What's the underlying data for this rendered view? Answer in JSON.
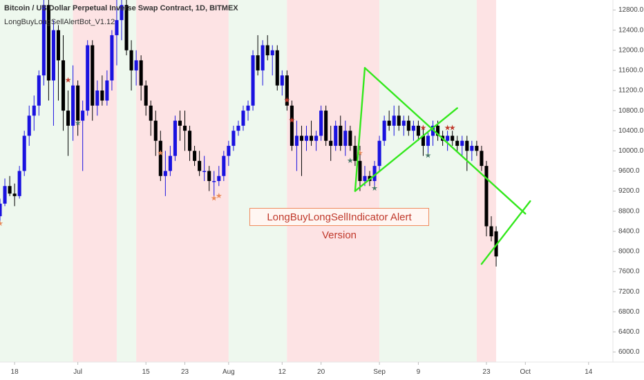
{
  "header": {
    "symbol_line": "Bitcoin / US Dollar Perpetual Inverse Swap Contract, 1D, BITMEX",
    "indicator_line": "LongBuyLongSellAlertBot_V1.12"
  },
  "annotation": "LongBuyLongSellIndicator Alert Version",
  "colors": {
    "bull": "#1a12e0",
    "bear": "#000000",
    "trendline": "#33e81c",
    "bg_green": "#eef8ee",
    "bg_red": "#fde3e4",
    "axis_text": "#444444",
    "star_red": "#c0392b",
    "star_orange": "#e88a5a",
    "star_green": "#4a7a6a"
  },
  "chart_data": {
    "type": "candlestick",
    "y_axis": {
      "ticks": [
        6000,
        6400,
        6800,
        7200,
        7600,
        8000,
        8400,
        8800,
        9200,
        9600,
        10000,
        10400,
        10800,
        11200,
        11600,
        12000,
        12400,
        12800
      ],
      "tick_labels": [
        "6000.0",
        "6400.0",
        "6800.0",
        "7200.0",
        "7600.0",
        "8000.0",
        "8400.0",
        "8800.0",
        "9200.0",
        "9600.0",
        "10000.0",
        "10400.0",
        "10800.0",
        "11200.0",
        "11600.0",
        "12000.0",
        "12400.0",
        "12800.0"
      ],
      "range": [
        5800,
        13000
      ]
    },
    "x_axis": {
      "labels": [
        "18",
        "Jul",
        "15",
        "23",
        "Aug",
        "12",
        "20",
        "Sep",
        "9",
        "23",
        "Oct",
        "14"
      ],
      "label_days": [
        -13,
        0,
        14,
        22,
        31,
        42,
        50,
        62,
        70,
        84,
        92,
        105
      ],
      "range_days": [
        -16,
        110
      ]
    },
    "background_zones": [
      {
        "start": -16,
        "end": -1,
        "kind": "green"
      },
      {
        "start": -1,
        "end": 8,
        "kind": "red"
      },
      {
        "start": 8,
        "end": 12,
        "kind": "green"
      },
      {
        "start": 12,
        "end": 31,
        "kind": "red"
      },
      {
        "start": 31,
        "end": 43,
        "kind": "green"
      },
      {
        "start": 43,
        "end": 62,
        "kind": "red"
      },
      {
        "start": 62,
        "end": 82,
        "kind": "green"
      },
      {
        "start": 82,
        "end": 86,
        "kind": "red"
      }
    ],
    "candles": [
      [
        -16,
        8700,
        9050,
        8600,
        8950
      ],
      [
        -15,
        8950,
        9450,
        8900,
        9300
      ],
      [
        -14,
        9300,
        9500,
        9100,
        9150
      ],
      [
        -13,
        9150,
        9350,
        8900,
        9100
      ],
      [
        -12,
        9100,
        9700,
        9050,
        9600
      ],
      [
        -11,
        9600,
        10400,
        9500,
        10300
      ],
      [
        -10,
        10300,
        10900,
        10100,
        10700
      ],
      [
        -9,
        10700,
        11100,
        10400,
        10900
      ],
      [
        -8,
        10900,
        11600,
        10700,
        11500
      ],
      [
        -7,
        11500,
        13100,
        11300,
        12900
      ],
      [
        -6,
        12900,
        13200,
        11000,
        11400
      ],
      [
        -5,
        11400,
        12600,
        10500,
        12400
      ],
      [
        -4,
        12400,
        12500,
        11000,
        11800
      ],
      [
        -3,
        11800,
        12300,
        10400,
        10800
      ],
      [
        -2,
        10800,
        11200,
        9900,
        10500
      ],
      [
        -1,
        10500,
        11700,
        10200,
        11300
      ],
      [
        0,
        11300,
        11400,
        10300,
        10600
      ],
      [
        1,
        10600,
        11000,
        9600,
        10800
      ],
      [
        2,
        10800,
        12200,
        10700,
        12100
      ],
      [
        3,
        12100,
        12200,
        10600,
        10900
      ],
      [
        4,
        10900,
        11400,
        10700,
        11200
      ],
      [
        5,
        11200,
        11500,
        10900,
        11000
      ],
      [
        6,
        11000,
        11600,
        10900,
        11400
      ],
      [
        7,
        11400,
        12400,
        11200,
        12300
      ],
      [
        8,
        12300,
        13200,
        11700,
        12600
      ],
      [
        9,
        12600,
        13200,
        12200,
        12900
      ],
      [
        10,
        12900,
        13000,
        11900,
        12000
      ],
      [
        11,
        12000,
        12200,
        11200,
        11600
      ],
      [
        12,
        11600,
        12000,
        11300,
        11800
      ],
      [
        13,
        11800,
        11900,
        11000,
        11300
      ],
      [
        14,
        11300,
        11400,
        10700,
        10900
      ],
      [
        15,
        10900,
        11000,
        10300,
        10600
      ],
      [
        16,
        10600,
        10800,
        9900,
        10200
      ],
      [
        17,
        10200,
        10400,
        9400,
        9500
      ],
      [
        18,
        9500,
        10000,
        9100,
        9600
      ],
      [
        19,
        9600,
        10100,
        9500,
        9900
      ],
      [
        20,
        9900,
        10700,
        9800,
        10600
      ],
      [
        21,
        10600,
        10800,
        10200,
        10500
      ],
      [
        22,
        10500,
        10800,
        10000,
        10400
      ],
      [
        23,
        10400,
        10500,
        9800,
        10000
      ],
      [
        24,
        10000,
        10100,
        9700,
        9800
      ],
      [
        25,
        9800,
        10000,
        9500,
        9600
      ],
      [
        26,
        9600,
        9900,
        9400,
        9600
      ],
      [
        27,
        9600,
        9700,
        9200,
        9400
      ],
      [
        28,
        9400,
        9600,
        9100,
        9400
      ],
      [
        29,
        9400,
        9700,
        9300,
        9500
      ],
      [
        30,
        9500,
        10000,
        9400,
        9900
      ],
      [
        31,
        9900,
        10200,
        9700,
        10100
      ],
      [
        32,
        10100,
        10500,
        10000,
        10400
      ],
      [
        33,
        10400,
        10600,
        10300,
        10500
      ],
      [
        34,
        10500,
        10900,
        10400,
        10800
      ],
      [
        35,
        10800,
        11000,
        10600,
        10900
      ],
      [
        36,
        10900,
        12000,
        10800,
        11900
      ],
      [
        37,
        11900,
        12300,
        11500,
        11600
      ],
      [
        38,
        11600,
        12200,
        11300,
        12100
      ],
      [
        39,
        12100,
        12300,
        11800,
        11900
      ],
      [
        40,
        11900,
        12100,
        11500,
        12000
      ],
      [
        41,
        12000,
        12100,
        11200,
        11300
      ],
      [
        42,
        11300,
        11600,
        11100,
        11500
      ],
      [
        43,
        11500,
        11600,
        10800,
        10900
      ],
      [
        44,
        10900,
        11000,
        10000,
        10100
      ],
      [
        45,
        10100,
        10600,
        9600,
        10300
      ],
      [
        46,
        10300,
        10500,
        9500,
        10200
      ],
      [
        47,
        10200,
        10500,
        10000,
        10300
      ],
      [
        48,
        10300,
        10600,
        10100,
        10200
      ],
      [
        49,
        10200,
        10400,
        10000,
        10300
      ],
      [
        50,
        10300,
        10900,
        10200,
        10800
      ],
      [
        51,
        10800,
        10900,
        10100,
        10200
      ],
      [
        52,
        10200,
        10500,
        9800,
        10100
      ],
      [
        53,
        10100,
        10600,
        10000,
        10500
      ],
      [
        54,
        10500,
        10700,
        10000,
        10100
      ],
      [
        55,
        10100,
        10600,
        9900,
        10400
      ],
      [
        56,
        10400,
        10500,
        10000,
        10100
      ],
      [
        57,
        10100,
        10300,
        9700,
        9800
      ],
      [
        58,
        9800,
        10100,
        9200,
        9400
      ],
      [
        59,
        9400,
        9700,
        9300,
        9500
      ],
      [
        60,
        9500,
        9600,
        9300,
        9400
      ],
      [
        61,
        9400,
        9800,
        9300,
        9700
      ],
      [
        62,
        9700,
        10300,
        9600,
        10200
      ],
      [
        63,
        10200,
        10700,
        10100,
        10600
      ],
      [
        64,
        10600,
        10800,
        10400,
        10500
      ],
      [
        65,
        10500,
        10900,
        10300,
        10700
      ],
      [
        66,
        10700,
        10900,
        10400,
        10500
      ],
      [
        67,
        10500,
        10700,
        10300,
        10600
      ],
      [
        68,
        10600,
        10700,
        10300,
        10400
      ],
      [
        69,
        10400,
        10600,
        10200,
        10500
      ],
      [
        70,
        10500,
        10600,
        10200,
        10300
      ],
      [
        71,
        10300,
        10500,
        9900,
        10100
      ],
      [
        72,
        10100,
        10400,
        9900,
        10300
      ],
      [
        73,
        10300,
        10600,
        10100,
        10500
      ],
      [
        74,
        10500,
        10600,
        10200,
        10300
      ],
      [
        75,
        10300,
        10400,
        10100,
        10200
      ],
      [
        76,
        10200,
        10400,
        10000,
        10300
      ],
      [
        77,
        10300,
        10400,
        10100,
        10200
      ],
      [
        78,
        10200,
        10300,
        10000,
        10100
      ],
      [
        79,
        10100,
        10300,
        9900,
        10200
      ],
      [
        80,
        10200,
        10300,
        9600,
        10000
      ],
      [
        81,
        10000,
        10200,
        9800,
        10100
      ],
      [
        82,
        10100,
        10200,
        9900,
        10000
      ],
      [
        83,
        10000,
        10100,
        9600,
        9700
      ],
      [
        84,
        9700,
        9800,
        8300,
        8500
      ],
      [
        85,
        8500,
        8700,
        8200,
        8300
      ],
      [
        86,
        8400,
        8500,
        7700,
        7900
      ]
    ],
    "markers": [
      {
        "day": -16,
        "price": 8550,
        "kind": "orange"
      },
      {
        "day": -2,
        "price": 11400,
        "kind": "red"
      },
      {
        "day": 0,
        "price": 10550,
        "kind": "green"
      },
      {
        "day": 17,
        "price": 9950,
        "kind": "orange"
      },
      {
        "day": 28,
        "price": 9050,
        "kind": "orange"
      },
      {
        "day": 29,
        "price": 9100,
        "kind": "orange"
      },
      {
        "day": 43,
        "price": 11000,
        "kind": "red"
      },
      {
        "day": 44,
        "price": 10600,
        "kind": "red"
      },
      {
        "day": 56,
        "price": 9800,
        "kind": "green"
      },
      {
        "day": 58,
        "price": 9950,
        "kind": "orange"
      },
      {
        "day": 61,
        "price": 9250,
        "kind": "green"
      },
      {
        "day": 71,
        "price": 10450,
        "kind": "red"
      },
      {
        "day": 76,
        "price": 10450,
        "kind": "red"
      },
      {
        "day": 77,
        "price": 10450,
        "kind": "red"
      },
      {
        "day": 72,
        "price": 9900,
        "kind": "green"
      }
    ],
    "trendlines": [
      {
        "from": [
          57,
          9200
        ],
        "to": [
          59,
          11650
        ]
      },
      {
        "from": [
          59,
          11650
        ],
        "to": [
          92,
          8750
        ]
      },
      {
        "from": [
          57,
          9200
        ],
        "to": [
          78,
          10850
        ]
      },
      {
        "from": [
          83,
          7750
        ],
        "to": [
          93,
          9000
        ]
      }
    ]
  }
}
